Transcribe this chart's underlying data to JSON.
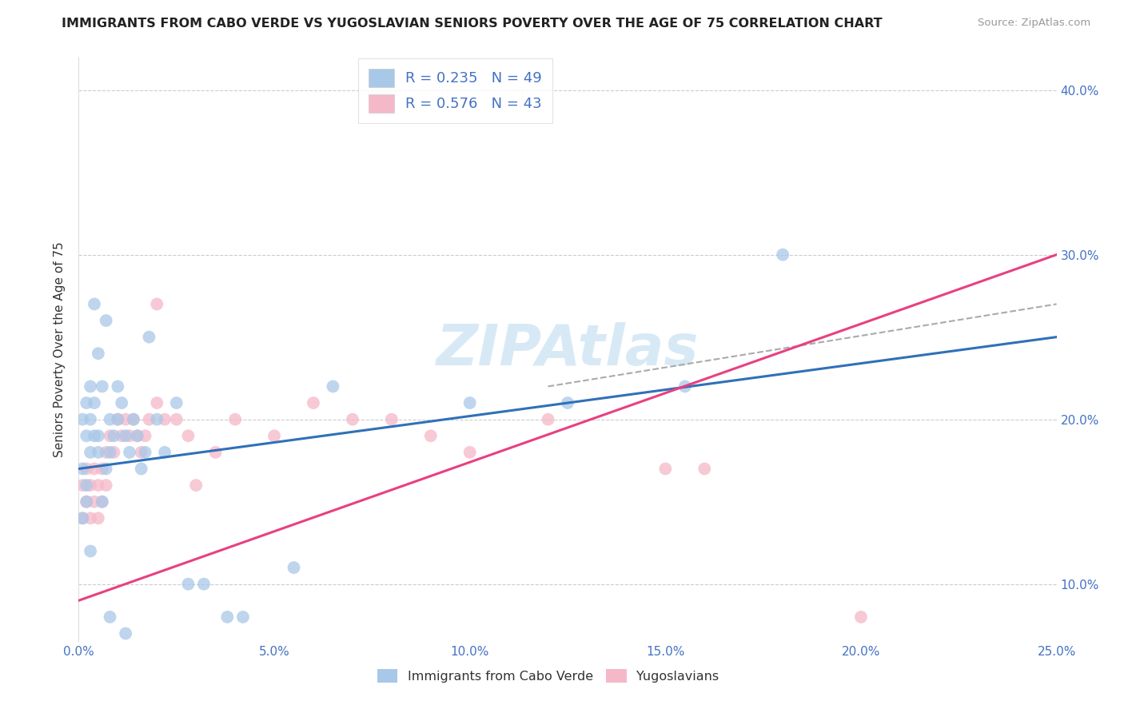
{
  "title": "IMMIGRANTS FROM CABO VERDE VS YUGOSLAVIAN SENIORS POVERTY OVER THE AGE OF 75 CORRELATION CHART",
  "source": "Source: ZipAtlas.com",
  "ylabel": "Seniors Poverty Over the Age of 75",
  "legend_label1": "Immigrants from Cabo Verde",
  "legend_label2": "Yugoslavians",
  "R1": 0.235,
  "N1": 49,
  "R2": 0.576,
  "N2": 43,
  "xlim": [
    0.0,
    0.25
  ],
  "ylim": [
    0.065,
    0.42
  ],
  "xticks": [
    0.0,
    0.05,
    0.1,
    0.15,
    0.2,
    0.25
  ],
  "yticks": [
    0.1,
    0.2,
    0.3,
    0.4
  ],
  "color1": "#a8c8e8",
  "color2": "#f5b8c8",
  "line_color1": "#3070b8",
  "line_color2": "#e84080",
  "watermark": "ZIPAtlas",
  "cabo_verde_x": [
    0.001,
    0.002,
    0.002,
    0.003,
    0.004,
    0.001,
    0.002,
    0.003,
    0.003,
    0.004,
    0.005,
    0.005,
    0.006,
    0.007,
    0.004,
    0.005,
    0.007,
    0.008,
    0.008,
    0.009,
    0.01,
    0.01,
    0.011,
    0.012,
    0.013,
    0.014,
    0.015,
    0.016,
    0.017,
    0.018,
    0.02,
    0.022,
    0.025,
    0.028,
    0.032,
    0.038,
    0.042,
    0.055,
    0.065,
    0.1,
    0.125,
    0.155,
    0.001,
    0.002,
    0.003,
    0.006,
    0.008,
    0.012,
    0.18
  ],
  "cabo_verde_y": [
    0.17,
    0.19,
    0.16,
    0.18,
    0.19,
    0.2,
    0.21,
    0.2,
    0.22,
    0.21,
    0.19,
    0.24,
    0.22,
    0.17,
    0.27,
    0.18,
    0.26,
    0.2,
    0.18,
    0.19,
    0.2,
    0.22,
    0.21,
    0.19,
    0.18,
    0.2,
    0.19,
    0.17,
    0.18,
    0.25,
    0.2,
    0.18,
    0.21,
    0.1,
    0.1,
    0.08,
    0.08,
    0.11,
    0.22,
    0.21,
    0.21,
    0.22,
    0.14,
    0.15,
    0.12,
    0.15,
    0.08,
    0.07,
    0.3
  ],
  "yugoslavian_x": [
    0.001,
    0.001,
    0.002,
    0.002,
    0.003,
    0.003,
    0.004,
    0.004,
    0.005,
    0.005,
    0.006,
    0.006,
    0.007,
    0.007,
    0.008,
    0.009,
    0.01,
    0.011,
    0.012,
    0.013,
    0.014,
    0.015,
    0.016,
    0.017,
    0.018,
    0.02,
    0.022,
    0.025,
    0.028,
    0.035,
    0.04,
    0.05,
    0.06,
    0.07,
    0.08,
    0.09,
    0.1,
    0.12,
    0.15,
    0.16,
    0.2,
    0.02,
    0.03
  ],
  "yugoslavian_y": [
    0.14,
    0.16,
    0.15,
    0.17,
    0.14,
    0.16,
    0.15,
    0.17,
    0.14,
    0.16,
    0.15,
    0.17,
    0.16,
    0.18,
    0.19,
    0.18,
    0.2,
    0.19,
    0.2,
    0.19,
    0.2,
    0.19,
    0.18,
    0.19,
    0.2,
    0.21,
    0.2,
    0.2,
    0.19,
    0.18,
    0.2,
    0.19,
    0.21,
    0.2,
    0.2,
    0.19,
    0.18,
    0.2,
    0.17,
    0.17,
    0.08,
    0.27,
    0.16
  ],
  "blue_line": [
    0.0,
    0.25,
    0.17,
    0.25
  ],
  "pink_line": [
    0.0,
    0.25,
    0.09,
    0.3
  ],
  "dash_line": [
    0.12,
    0.25,
    0.22,
    0.27
  ]
}
